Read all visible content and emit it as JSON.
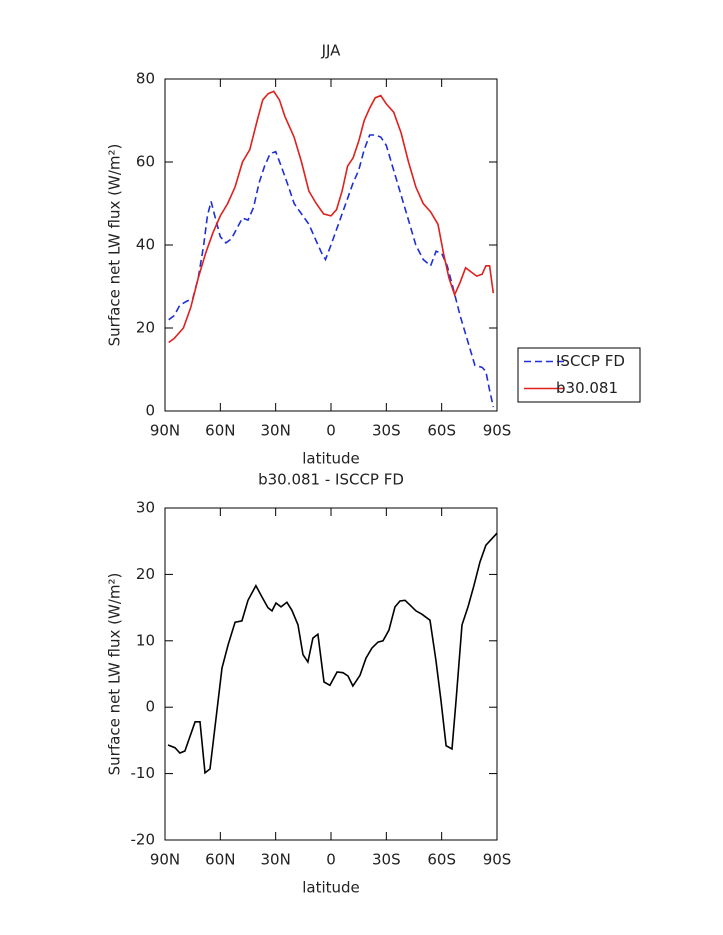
{
  "chart_data": [
    {
      "type": "line",
      "title": "JJA",
      "x_label": "latitude",
      "y_label": "Surface net LW flux (W/m²)",
      "xlim": [
        90,
        -90
      ],
      "xticks": [
        {
          "value": 90,
          "label": "90N"
        },
        {
          "value": 60,
          "label": "60N"
        },
        {
          "value": 30,
          "label": "30N"
        },
        0,
        {
          "value": -30,
          "label": "30S"
        },
        {
          "value": -60,
          "label": "60S"
        },
        {
          "value": -90,
          "label": "90S"
        }
      ],
      "ylim": [
        0,
        80
      ],
      "yticks": [
        0,
        20,
        40,
        60,
        80
      ],
      "legend": "right",
      "series": [
        {
          "name": "ISCCP FD",
          "color": "#1f2fd8",
          "line_style": "dashed",
          "x": [
            88,
            85,
            82,
            78,
            75,
            72,
            69,
            67,
            65,
            63,
            60,
            57,
            54,
            51,
            48,
            45,
            42,
            39,
            36,
            33,
            30,
            27,
            23,
            20,
            16,
            12,
            8,
            5,
            3,
            0,
            -4,
            -8,
            -12,
            -15,
            -18,
            -21,
            -24,
            -27,
            -30,
            -34,
            -38,
            -42,
            -46,
            -50,
            -54,
            -57,
            -60,
            -63,
            -66,
            -70,
            -74,
            -78,
            -82,
            -84,
            -86,
            -88
          ],
          "values": [
            22,
            23,
            25.5,
            26.5,
            27,
            32,
            40,
            47,
            50.5,
            47,
            42,
            40.5,
            41.5,
            44,
            46.5,
            46,
            49,
            55,
            59,
            62,
            62.5,
            59,
            54,
            50,
            47.5,
            45,
            41,
            38,
            36.5,
            40,
            45,
            50,
            55,
            58,
            63,
            66.5,
            66.5,
            66,
            64,
            58,
            52,
            46,
            40,
            36.5,
            35,
            38.5,
            38,
            35,
            30,
            23,
            17,
            11,
            10.5,
            9.5,
            5,
            1
          ]
        },
        {
          "name": "b30.081",
          "color": "#e0201c",
          "line_style": "solid",
          "x": [
            88,
            85,
            80,
            76,
            72,
            68,
            64,
            60,
            56,
            52,
            48,
            44,
            40,
            37,
            34,
            31,
            28,
            25,
            20,
            16,
            12,
            8,
            4,
            0,
            -3,
            -6,
            -9,
            -12,
            -15,
            -18,
            -21,
            -24,
            -27,
            -30,
            -34,
            -38,
            -42,
            -46,
            -50,
            -54,
            -58,
            -61,
            -64,
            -67,
            -70,
            -73,
            -76,
            -79,
            -82,
            -84,
            -86,
            -88
          ],
          "values": [
            16.5,
            17.5,
            20,
            25,
            32,
            38,
            43,
            47,
            50,
            54,
            60,
            63,
            70,
            75,
            76.5,
            77,
            75,
            71,
            66,
            60,
            53,
            50,
            47.5,
            47,
            48.5,
            53,
            59,
            61,
            65,
            70,
            73,
            75.5,
            76,
            74,
            72,
            67,
            60,
            54,
            50,
            48,
            45,
            38,
            32,
            28,
            31,
            34.5,
            33.5,
            32.5,
            33,
            35,
            35,
            28.4
          ]
        }
      ]
    },
    {
      "type": "line",
      "title": "b30.081 - ISCCP FD",
      "x_label": "latitude",
      "y_label": "Surface net LW flux (W/m²)",
      "xlim": [
        90,
        -90
      ],
      "xticks": [
        {
          "value": 90,
          "label": "90N"
        },
        {
          "value": 60,
          "label": "60N"
        },
        {
          "value": 30,
          "label": "30N"
        },
        0,
        {
          "value": -30,
          "label": "30S"
        },
        {
          "value": -60,
          "label": "60S"
        },
        {
          "value": -90,
          "label": "90S"
        }
      ],
      "ylim": [
        -20,
        30
      ],
      "yticks": [
        -20,
        -10,
        0,
        10,
        20,
        30
      ],
      "series": [
        {
          "color": "#000000",
          "line_style": "solid",
          "x": [
            88.4,
            84.6,
            81.9,
            79.2,
            73.7,
            71.0,
            68.3,
            65.6,
            59.1,
            55.8,
            52.0,
            48.3,
            45.0,
            40.7,
            37.4,
            34.2,
            32.0,
            29.8,
            27.1,
            23.9,
            21.2,
            17.9,
            15.2,
            12.5,
            9.8,
            7.1,
            3.8,
            0.6,
            -3.3,
            -6.5,
            -9.2,
            -11.9,
            -15.7,
            -19.0,
            -22.2,
            -25.5,
            -28.2,
            -31.4,
            -34.7,
            -37.4,
            -40.1,
            -42.8,
            -46.1,
            -49.3,
            -53.7,
            -56.9,
            -59.6,
            -62.4,
            -65.6,
            -67.8,
            -71.0,
            -74.3,
            -77.5,
            -80.8,
            -84.0,
            -90
          ],
          "values": [
            -5.7,
            -6.1,
            -6.9,
            -6.6,
            -2.2,
            -2.2,
            -9.9,
            -9.3,
            5.9,
            9.4,
            12.8,
            13,
            16.1,
            18.3,
            16.6,
            15,
            14.5,
            15.7,
            15.1,
            15.8,
            14.6,
            12.4,
            7.9,
            6.8,
            10.4,
            11,
            3.8,
            3.3,
            5.3,
            5.2,
            4.7,
            3.2,
            4.8,
            7.4,
            8.9,
            9.8,
            10,
            11.6,
            15.1,
            16,
            16.1,
            15.4,
            14.5,
            14,
            13.1,
            7.1,
            1.1,
            -5.8,
            -6.3,
            1.1,
            12.4,
            15.1,
            18.3,
            21.9,
            24.4,
            26.2
          ]
        }
      ]
    }
  ]
}
